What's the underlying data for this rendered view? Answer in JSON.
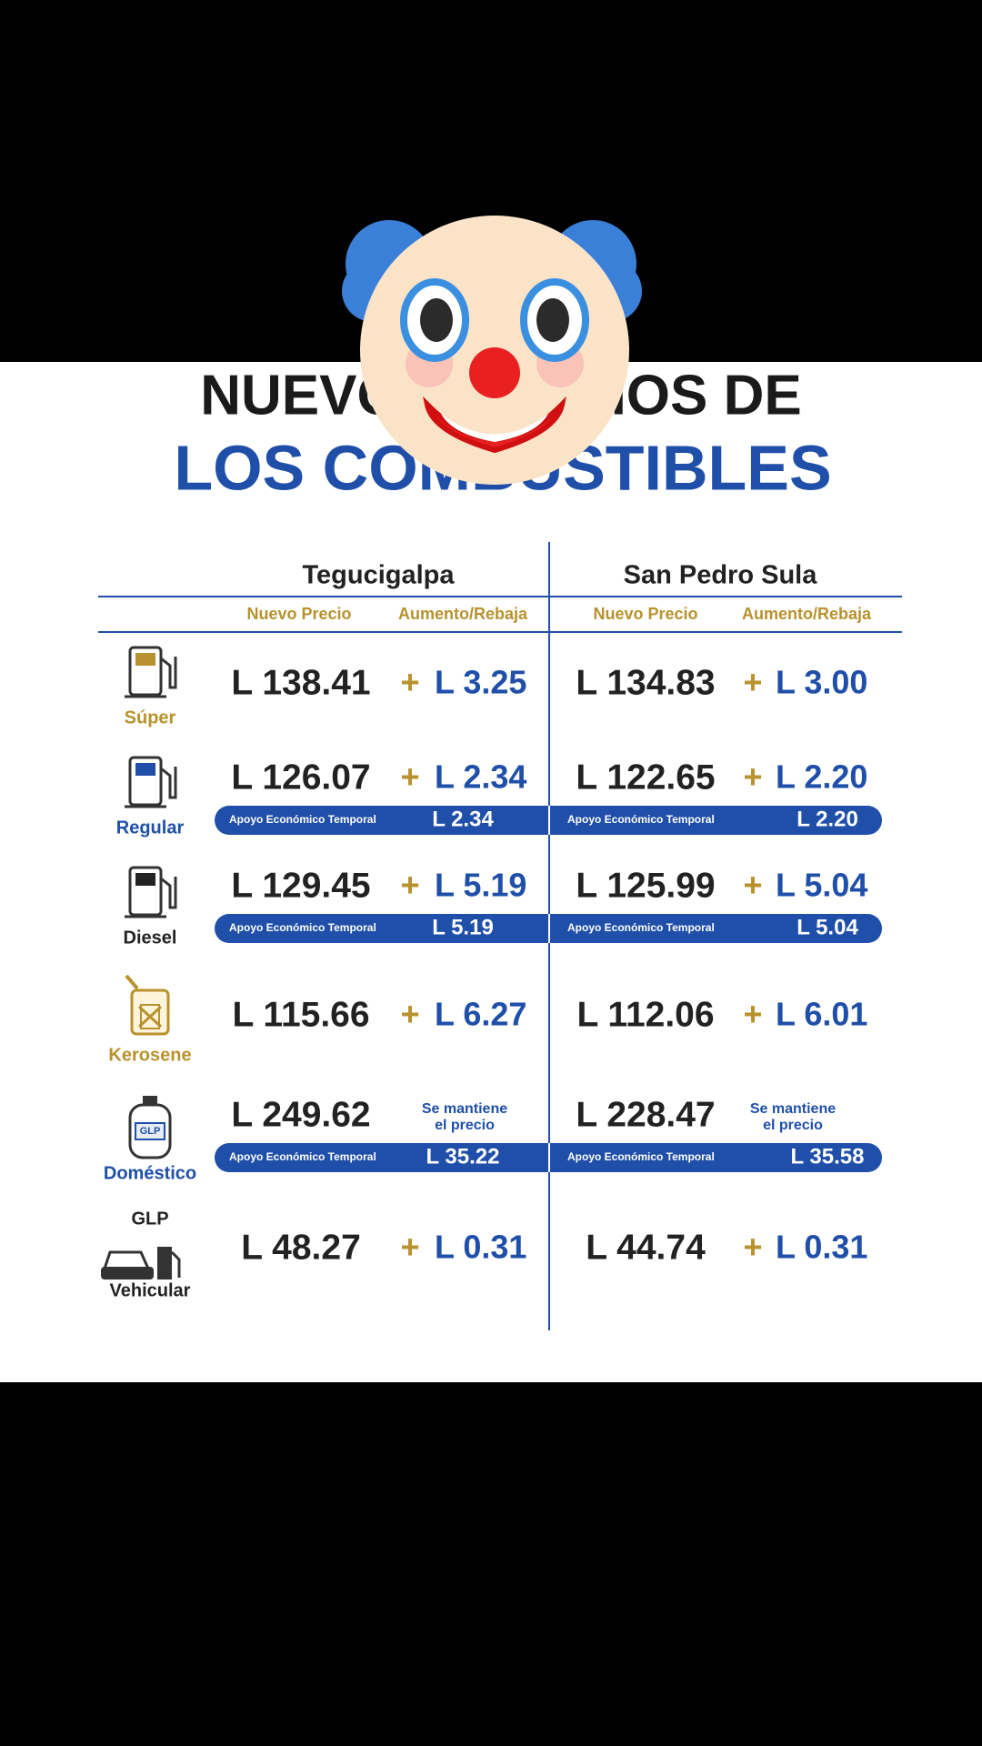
{
  "header": {
    "title_line1": "NUEVOS PRECIOS DE",
    "title_line2": "LOS COMBUSTIBLES"
  },
  "table": {
    "cities": [
      "Tegucigalpa",
      "San Pedro Sula"
    ],
    "column_headers": [
      "Nuevo Precio",
      "Aumento/Rebaja"
    ],
    "rows": [
      {
        "label": "Súper",
        "color": "#b8922e",
        "cells": [
          {
            "price": "L 138.41",
            "sign": "+",
            "change": "L 3.25"
          },
          {
            "price": "L 134.83",
            "sign": "+",
            "change": "L 3.00"
          }
        ]
      },
      {
        "label": "Regular",
        "color": "#1f4fa8",
        "cells": [
          {
            "price": "L 126.07",
            "sign": "+",
            "change": "L 2.34",
            "support_label": "Apoyo Económico Temporal",
            "support": "L 2.34"
          },
          {
            "price": "L 122.65",
            "sign": "+",
            "change": "L 2.20",
            "support_label": "Apoyo Económico Temporal",
            "support": "L 2.20"
          }
        ]
      },
      {
        "label": "Diesel",
        "color": "#222222",
        "cells": [
          {
            "price": "L 129.45",
            "sign": "+",
            "change": "L 5.19",
            "support_label": "Apoyo Económico Temporal",
            "support": "L 5.19"
          },
          {
            "price": "L 125.99",
            "sign": "+",
            "change": "L 5.04",
            "support_label": "Apoyo Económico Temporal",
            "support": "L 5.04"
          }
        ]
      },
      {
        "label": "Kerosene",
        "color": "#b8922e",
        "cells": [
          {
            "price": "L 115.66",
            "sign": "+",
            "change": "L 6.27"
          },
          {
            "price": "L 112.06",
            "sign": "+",
            "change": "L 6.01"
          }
        ]
      },
      {
        "label": "Doméstico",
        "icon_text": "GLP",
        "color": "#1f4fa8",
        "cells": [
          {
            "price": "L 249.62",
            "note": [
              "Se mantiene",
              "el precio"
            ],
            "support_label": "Apoyo Económico Temporal",
            "support": "L 35.22"
          },
          {
            "price": "L 228.47",
            "note": [
              "Se mantiene",
              "el precio"
            ],
            "support_label": "Apoyo Económico Temporal",
            "support": "L 35.58"
          }
        ]
      },
      {
        "label_top": "GLP",
        "label": "Vehicular",
        "color": "#222222",
        "cells": [
          {
            "price": "L 48.27",
            "sign": "+",
            "change": "L 0.31"
          },
          {
            "price": "L 44.74",
            "sign": "+",
            "change": "L 0.31"
          }
        ]
      }
    ]
  }
}
